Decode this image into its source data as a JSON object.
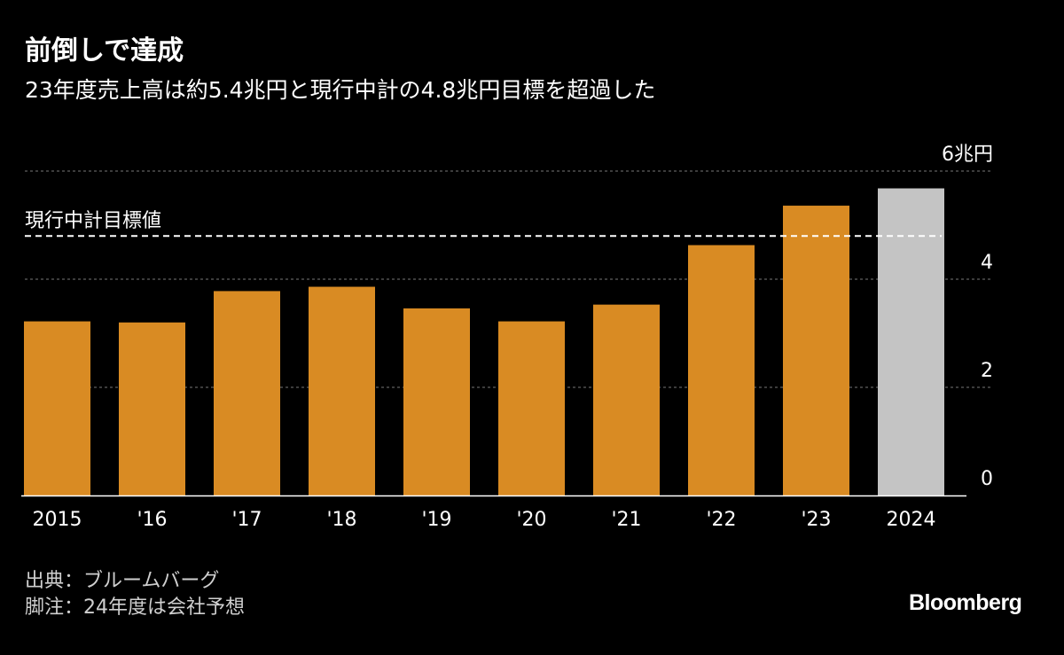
{
  "title": "前倒しで達成",
  "subtitle": "23年度売上高は約5.4兆円と現行中計の4.8兆円目標を超過した",
  "source": "出典：ブルームバーグ",
  "note": "脚注：24年度は会社予想",
  "logo": "Bloomberg",
  "colors": {
    "background": "#000000",
    "actual_bar": "#d98b23",
    "forecast_bar": "#c4c4c4",
    "grid": "#777777",
    "target_line": "#ffffff",
    "text": "#ffffff",
    "footer_text": "#cfcfcf"
  },
  "chart_data": {
    "type": "bar",
    "categories": [
      "2015",
      "'16",
      "'17",
      "'18",
      "'19",
      "'20",
      "'21",
      "'22",
      "'23",
      "2024"
    ],
    "values": [
      3.22,
      3.2,
      3.78,
      3.86,
      3.46,
      3.22,
      3.53,
      4.63,
      5.36,
      5.68
    ],
    "forecast": [
      false,
      false,
      false,
      false,
      false,
      false,
      false,
      false,
      false,
      true
    ],
    "ylim": [
      0,
      6
    ],
    "yticks": [
      0,
      2,
      4,
      6
    ],
    "ytick_labels": [
      "0",
      "2",
      "4",
      "6兆円"
    ],
    "grid": true,
    "y_axis_side": "right",
    "target": {
      "value": 4.8,
      "label": "現行中計目標値"
    }
  }
}
